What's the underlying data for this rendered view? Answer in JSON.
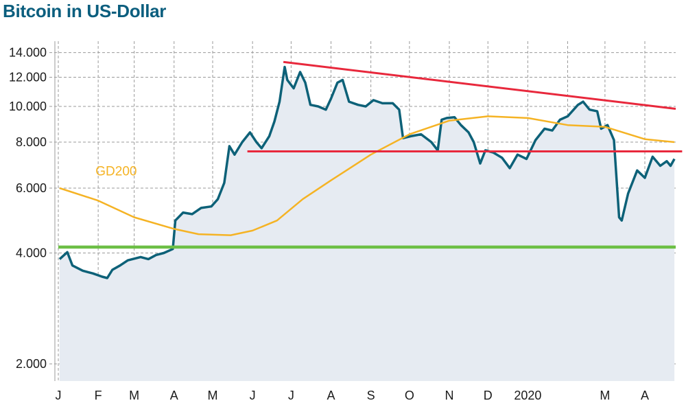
{
  "chart_data": {
    "type": "line",
    "title": "Bitcoin in US-Dollar",
    "y_scale": "log",
    "ylim": [
      1800,
      15000
    ],
    "y_ticks": [
      {
        "value": 2000,
        "label": "2.000"
      },
      {
        "value": 4000,
        "label": "4.000"
      },
      {
        "value": 6000,
        "label": "6.000"
      },
      {
        "value": 8000,
        "label": "8.000"
      },
      {
        "value": 10000,
        "label": "10.000"
      },
      {
        "value": 12000,
        "label": "12.000"
      },
      {
        "value": 14000,
        "label": "14.000"
      }
    ],
    "x_ticks": [
      {
        "label": "J",
        "date": "2019-01-01"
      },
      {
        "label": "F",
        "date": "2019-02-01"
      },
      {
        "label": "M",
        "date": "2019-03-01"
      },
      {
        "label": "A",
        "date": "2019-04-01"
      },
      {
        "label": "M",
        "date": "2019-05-01"
      },
      {
        "label": "J",
        "date": "2019-06-01"
      },
      {
        "label": "J",
        "date": "2019-07-01"
      },
      {
        "label": "A",
        "date": "2019-08-01"
      },
      {
        "label": "S",
        "date": "2019-09-01"
      },
      {
        "label": "O",
        "date": "2019-10-01"
      },
      {
        "label": "N",
        "date": "2019-11-01"
      },
      {
        "label": "D",
        "date": "2019-12-01"
      },
      {
        "label": "2020",
        "date": "2020-01-01"
      },
      {
        "label": "",
        "date": "2020-02-01"
      },
      {
        "label": "M",
        "date": "2020-03-01"
      },
      {
        "label": "A",
        "date": "2020-04-01"
      }
    ],
    "grid": true,
    "series": [
      {
        "name": "",
        "color": "#0d6178",
        "fill": "#e6ebf2",
        "points": [
          [
            "2019-01-02",
            3850
          ],
          [
            "2019-01-08",
            4020
          ],
          [
            "2019-01-12",
            3700
          ],
          [
            "2019-01-20",
            3580
          ],
          [
            "2019-01-28",
            3520
          ],
          [
            "2019-02-04",
            3450
          ],
          [
            "2019-02-08",
            3420
          ],
          [
            "2019-02-12",
            3600
          ],
          [
            "2019-02-18",
            3700
          ],
          [
            "2019-02-24",
            3820
          ],
          [
            "2019-03-01",
            3860
          ],
          [
            "2019-03-06",
            3900
          ],
          [
            "2019-03-12",
            3850
          ],
          [
            "2019-03-18",
            3950
          ],
          [
            "2019-03-24",
            4000
          ],
          [
            "2019-03-31",
            4100
          ],
          [
            "2019-04-02",
            4900
          ],
          [
            "2019-04-08",
            5150
          ],
          [
            "2019-04-15",
            5100
          ],
          [
            "2019-04-22",
            5300
          ],
          [
            "2019-04-30",
            5350
          ],
          [
            "2019-05-05",
            5600
          ],
          [
            "2019-05-10",
            6200
          ],
          [
            "2019-05-14",
            7800
          ],
          [
            "2019-05-18",
            7400
          ],
          [
            "2019-05-24",
            8000
          ],
          [
            "2019-05-30",
            8500
          ],
          [
            "2019-06-04",
            8000
          ],
          [
            "2019-06-08",
            7700
          ],
          [
            "2019-06-14",
            8300
          ],
          [
            "2019-06-18",
            9100
          ],
          [
            "2019-06-22",
            10300
          ],
          [
            "2019-06-26",
            12800
          ],
          [
            "2019-06-28",
            11800
          ],
          [
            "2019-07-03",
            11200
          ],
          [
            "2019-07-08",
            12400
          ],
          [
            "2019-07-12",
            11600
          ],
          [
            "2019-07-16",
            10100
          ],
          [
            "2019-07-22",
            10000
          ],
          [
            "2019-07-28",
            9800
          ],
          [
            "2019-08-01",
            10500
          ],
          [
            "2019-08-06",
            11600
          ],
          [
            "2019-08-10",
            11800
          ],
          [
            "2019-08-15",
            10300
          ],
          [
            "2019-08-22",
            10100
          ],
          [
            "2019-08-28",
            10000
          ],
          [
            "2019-09-03",
            10400
          ],
          [
            "2019-09-10",
            10200
          ],
          [
            "2019-09-18",
            10200
          ],
          [
            "2019-09-23",
            9800
          ],
          [
            "2019-09-26",
            8200
          ],
          [
            "2019-10-02",
            8300
          ],
          [
            "2019-10-10",
            8400
          ],
          [
            "2019-10-18",
            8000
          ],
          [
            "2019-10-23",
            7600
          ],
          [
            "2019-10-26",
            9200
          ],
          [
            "2019-10-30",
            9300
          ],
          [
            "2019-11-05",
            9350
          ],
          [
            "2019-11-10",
            8900
          ],
          [
            "2019-11-16",
            8500
          ],
          [
            "2019-11-20",
            8000
          ],
          [
            "2019-11-25",
            7000
          ],
          [
            "2019-11-29",
            7600
          ],
          [
            "2019-12-05",
            7500
          ],
          [
            "2019-12-12",
            7250
          ],
          [
            "2019-12-18",
            6800
          ],
          [
            "2019-12-24",
            7400
          ],
          [
            "2019-12-31",
            7200
          ],
          [
            "2020-01-07",
            8100
          ],
          [
            "2020-01-14",
            8700
          ],
          [
            "2020-01-20",
            8600
          ],
          [
            "2020-01-26",
            9200
          ],
          [
            "2020-02-01",
            9400
          ],
          [
            "2020-02-09",
            10100
          ],
          [
            "2020-02-13",
            10300
          ],
          [
            "2020-02-18",
            9800
          ],
          [
            "2020-02-24",
            9700
          ],
          [
            "2020-02-27",
            8700
          ],
          [
            "2020-03-03",
            8900
          ],
          [
            "2020-03-08",
            8100
          ],
          [
            "2020-03-12",
            5000
          ],
          [
            "2020-03-14",
            4900
          ],
          [
            "2020-03-19",
            5800
          ],
          [
            "2020-03-26",
            6700
          ],
          [
            "2020-04-01",
            6400
          ],
          [
            "2020-04-07",
            7300
          ],
          [
            "2020-04-13",
            6900
          ],
          [
            "2020-04-18",
            7100
          ],
          [
            "2020-04-21",
            6900
          ],
          [
            "2020-04-24",
            7200
          ]
        ]
      },
      {
        "name": "GD200",
        "color": "#f5b324",
        "label_date": "2019-02-15",
        "label_value": 6500,
        "points": [
          [
            "2019-01-02",
            6000
          ],
          [
            "2019-02-01",
            5550
          ],
          [
            "2019-03-01",
            5000
          ],
          [
            "2019-04-01",
            4650
          ],
          [
            "2019-04-20",
            4500
          ],
          [
            "2019-05-15",
            4470
          ],
          [
            "2019-06-01",
            4600
          ],
          [
            "2019-06-20",
            4900
          ],
          [
            "2019-07-10",
            5600
          ],
          [
            "2019-08-01",
            6300
          ],
          [
            "2019-09-01",
            7400
          ],
          [
            "2019-10-01",
            8400
          ],
          [
            "2019-11-01",
            9150
          ],
          [
            "2019-12-01",
            9400
          ],
          [
            "2020-01-01",
            9300
          ],
          [
            "2020-02-01",
            8900
          ],
          [
            "2020-03-01",
            8800
          ],
          [
            "2020-04-01",
            8150
          ],
          [
            "2020-04-24",
            8000
          ]
        ]
      },
      {
        "name": "",
        "color": "#e8283c",
        "points": [
          [
            "2019-06-25",
            13200
          ],
          [
            "2020-04-25",
            9850
          ]
        ]
      },
      {
        "name": "",
        "color": "#e8283c",
        "points": [
          [
            "2019-05-28",
            7550
          ],
          [
            "2020-04-30",
            7550
          ]
        ]
      },
      {
        "name": "",
        "color": "#6cbf45",
        "points": [
          [
            "2019-01-01",
            4150
          ],
          [
            "2020-04-25",
            4150
          ]
        ]
      }
    ]
  }
}
